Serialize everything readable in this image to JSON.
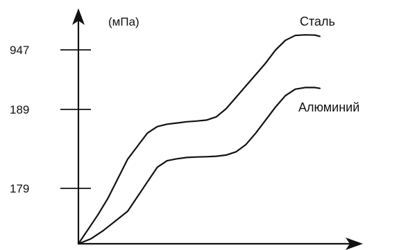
{
  "chart_data": {
    "type": "line",
    "ylabel": "(мПа)",
    "xlabel": "",
    "title": "",
    "y_ticks": [
      {
        "value": 179,
        "label": "179"
      },
      {
        "value": 189,
        "label": "189"
      },
      {
        "value": 947,
        "label": "947"
      }
    ],
    "x_range": [
      0,
      100
    ],
    "grid": false,
    "legend": "inline",
    "series": [
      {
        "name": "Сталь",
        "color": "#111111",
        "x": [
          0,
          4,
          8,
          12,
          16,
          20,
          24,
          28,
          32,
          36,
          40,
          44,
          48,
          52,
          56,
          60,
          64,
          68,
          72,
          76,
          80,
          84,
          88,
          92,
          96,
          98
        ],
        "y": [
          0,
          9,
          18,
          28,
          40,
          52,
          60,
          68,
          72,
          73.5,
          74.2,
          75,
          75.4,
          76,
          78,
          83,
          90,
          97,
          104,
          111,
          119,
          125,
          128,
          128.4,
          128.2,
          127.5
        ]
      },
      {
        "name": "Алюминий",
        "color": "#111111",
        "x": [
          0,
          5,
          10,
          15,
          20,
          24,
          28,
          32,
          36,
          40,
          44,
          48,
          52,
          56,
          60,
          64,
          68,
          72,
          76,
          80,
          84,
          88,
          92,
          96,
          98
        ],
        "y": [
          0,
          3,
          8,
          14,
          20,
          29,
          38,
          47,
          51,
          52.2,
          53,
          53.3,
          53.5,
          53.8,
          54.5,
          56.5,
          61,
          68,
          76,
          84,
          91,
          95,
          96,
          96,
          95.5
        ]
      }
    ]
  }
}
